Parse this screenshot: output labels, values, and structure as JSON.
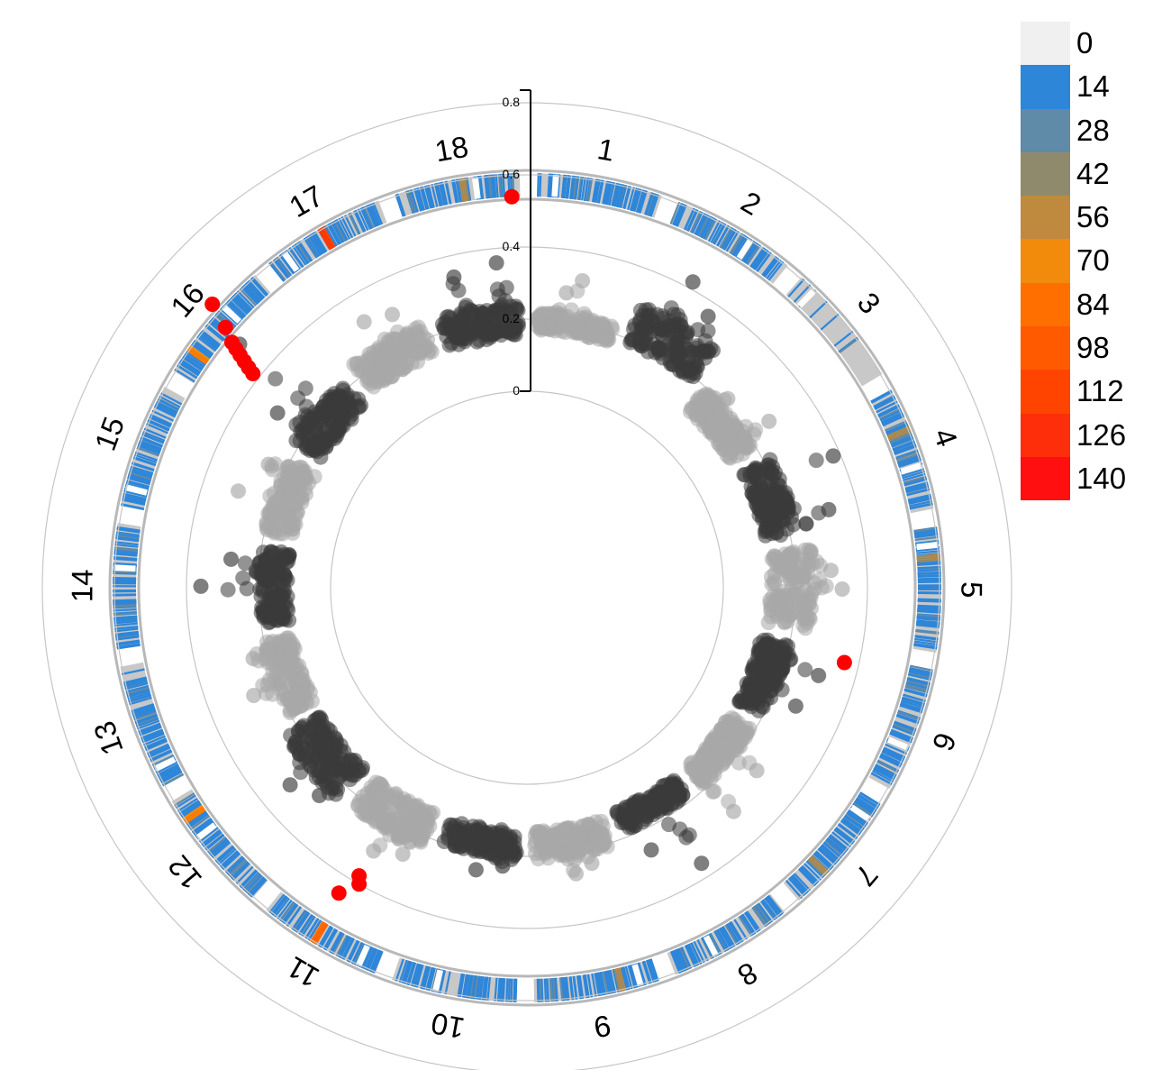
{
  "chart_data": {
    "type": "scatter",
    "layout": "circular-manhattan",
    "title": "",
    "chromosomes": [
      "1",
      "2",
      "3",
      "4",
      "5",
      "6",
      "7",
      "8",
      "9",
      "10",
      "11",
      "12",
      "13",
      "14",
      "15",
      "16",
      "17",
      "18"
    ],
    "radial_axis": {
      "ticks": [
        0,
        0.2,
        0.4,
        0.6,
        0.8
      ],
      "tick_labels": [
        "0",
        "0.2",
        "0.4",
        "0.6",
        "0.8"
      ],
      "range": [
        0,
        0.8
      ],
      "grid": true
    },
    "series": [
      {
        "chromosome": "1",
        "color": "#a8a8a8",
        "base": 0.17,
        "top": 0.22,
        "peaks": [
          [
            0.5,
            0.32
          ],
          [
            0.35,
            0.28
          ]
        ]
      },
      {
        "chromosome": "2",
        "color": "#3a3a3a",
        "base": 0.19,
        "top": 0.3,
        "peaks": [
          [
            0.4,
            0.42
          ],
          [
            0.7,
            0.36
          ]
        ]
      },
      {
        "chromosome": "3",
        "color": "#a8a8a8",
        "base": 0.12,
        "top": 0.19,
        "peaks": [
          [
            0.8,
            0.27
          ],
          [
            0.3,
            0.22
          ]
        ]
      },
      {
        "chromosome": "4",
        "color": "#3a3a3a",
        "base": 0.13,
        "top": 0.22,
        "peaks": [
          [
            0.3,
            0.38
          ],
          [
            0.8,
            0.32
          ]
        ]
      },
      {
        "chromosome": "5",
        "color": "#a8a8a8",
        "base": 0.13,
        "top": 0.25,
        "peaks": [
          [
            0.5,
            0.33
          ],
          [
            0.3,
            0.3
          ]
        ]
      },
      {
        "chromosome": "6",
        "color": "#3a3a3a",
        "base": 0.12,
        "top": 0.2,
        "peaks": [
          [
            0.3,
            0.3
          ],
          [
            0.7,
            0.27
          ]
        ]
      },
      {
        "chromosome": "7",
        "color": "#a8a8a8",
        "base": 0.12,
        "top": 0.19,
        "peaks": [
          [
            0.4,
            0.27
          ],
          [
            0.9,
            0.3
          ]
        ]
      },
      {
        "chromosome": "8",
        "color": "#3a3a3a",
        "base": 0.12,
        "top": 0.18,
        "peaks": [
          [
            0.35,
            0.36
          ],
          [
            0.75,
            0.26
          ]
        ]
      },
      {
        "chromosome": "9",
        "color": "#a8a8a8",
        "base": 0.13,
        "top": 0.21,
        "peaks": [
          [
            0.5,
            0.26
          ],
          [
            0.3,
            0.24
          ]
        ]
      },
      {
        "chromosome": "10",
        "color": "#3a3a3a",
        "base": 0.13,
        "top": 0.2,
        "peaks": [
          [
            0.5,
            0.25
          ],
          [
            0.2,
            0.23
          ]
        ]
      },
      {
        "chromosome": "11",
        "color": "#a8a8a8",
        "base": 0.13,
        "top": 0.23,
        "peaks": [
          [
            0.5,
            0.3
          ],
          [
            0.2,
            0.27
          ]
        ]
      },
      {
        "chromosome": "12",
        "color": "#3a3a3a",
        "base": 0.13,
        "top": 0.24,
        "peaks": [
          [
            0.5,
            0.31
          ],
          [
            0.2,
            0.27
          ]
        ]
      },
      {
        "chromosome": "13",
        "color": "#a8a8a8",
        "base": 0.12,
        "top": 0.2,
        "peaks": [
          [
            0.4,
            0.27
          ],
          [
            0.8,
            0.24
          ]
        ]
      },
      {
        "chromosome": "14",
        "color": "#3a3a3a",
        "base": 0.12,
        "top": 0.2,
        "peaks": [
          [
            0.5,
            0.36
          ],
          [
            0.8,
            0.28
          ]
        ]
      },
      {
        "chromosome": "15",
        "color": "#a8a8a8",
        "base": 0.12,
        "top": 0.2,
        "peaks": [
          [
            0.4,
            0.3
          ],
          [
            0.8,
            0.25
          ]
        ]
      },
      {
        "chromosome": "16",
        "color": "#3a3a3a",
        "base": 0.13,
        "top": 0.22,
        "peaks": [
          [
            0.5,
            0.5
          ],
          [
            0.2,
            0.3
          ]
        ]
      },
      {
        "chromosome": "17",
        "color": "#a8a8a8",
        "base": 0.15,
        "top": 0.24,
        "peaks": [
          [
            0.4,
            0.32
          ],
          [
            0.7,
            0.3
          ]
        ]
      },
      {
        "chromosome": "18",
        "color": "#3a3a3a",
        "base": 0.15,
        "top": 0.24,
        "peaks": [
          [
            0.3,
            0.34
          ],
          [
            0.75,
            0.36
          ]
        ]
      }
    ],
    "highlighted": {
      "color": "#ff0000",
      "points": [
        {
          "chromosome": "18",
          "pos": 0.93,
          "value": 0.54
        },
        {
          "chromosome": "16",
          "pos": 0.6,
          "value": 0.63
        },
        {
          "chromosome": "16",
          "pos": 0.53,
          "value": 0.56
        },
        {
          "chromosome": "16",
          "pos": 0.47,
          "value": 0.52
        },
        {
          "chromosome": "16",
          "pos": 0.45,
          "value": 0.5
        },
        {
          "chromosome": "16",
          "pos": 0.43,
          "value": 0.48
        },
        {
          "chromosome": "16",
          "pos": 0.41,
          "value": 0.46
        },
        {
          "chromosome": "16",
          "pos": 0.39,
          "value": 0.44
        },
        {
          "chromosome": "16",
          "pos": 0.37,
          "value": 0.42
        },
        {
          "chromosome": "11",
          "pos": 0.5,
          "value": 0.38
        },
        {
          "chromosome": "11",
          "pos": 0.46,
          "value": 0.4
        },
        {
          "chromosome": "11",
          "pos": 0.58,
          "value": 0.45
        },
        {
          "chromosome": "6",
          "pos": 0.1,
          "value": 0.36
        }
      ]
    },
    "density_track": {
      "legend_values": [
        0,
        14,
        28,
        42,
        56,
        70,
        84,
        98,
        112,
        126,
        140
      ],
      "legend_colors": [
        "#f0f0f0",
        "#2e86d9",
        "#5f8aa8",
        "#8f8a6c",
        "#c08a3e",
        "#f28b0c",
        "#ff6f00",
        "#ff5a00",
        "#ff4400",
        "#ff2e0a",
        "#ff0f0f"
      ],
      "background_color": "#c8c8c8",
      "hotspots": [
        {
          "chromosome": "17",
          "pos": 0.5,
          "level": 126
        },
        {
          "chromosome": "16",
          "pos": 0.22,
          "level": 84
        },
        {
          "chromosome": "12",
          "pos": 0.82,
          "level": 84
        },
        {
          "chromosome": "11",
          "pos": 0.55,
          "level": 98
        },
        {
          "chromosome": "4",
          "pos": 0.35,
          "level": 56
        },
        {
          "chromosome": "5",
          "pos": 0.25,
          "level": 56
        },
        {
          "chromosome": "18",
          "pos": 0.55,
          "level": 56
        },
        {
          "chromosome": "9",
          "pos": 0.3,
          "level": 56
        },
        {
          "chromosome": "7",
          "pos": 0.7,
          "level": 56
        }
      ]
    }
  }
}
